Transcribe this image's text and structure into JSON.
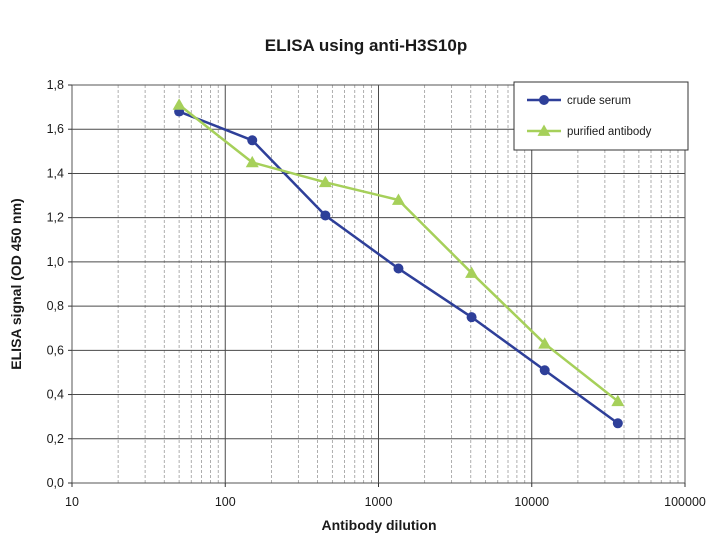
{
  "chart_data": {
    "type": "line",
    "title": "ELISA using anti-H3S10p",
    "xlabel": "Antibody dilution",
    "ylabel": "ELISA signal (OD 450 nm)",
    "x_scale": "log",
    "xlim": [
      10,
      100000
    ],
    "ylim": [
      0,
      1.8
    ],
    "x_ticks": [
      10,
      100,
      1000,
      10000,
      100000
    ],
    "x_tick_labels": [
      "10",
      "100",
      "1000",
      "10000",
      "100000"
    ],
    "y_ticks": [
      0,
      0.2,
      0.4,
      0.6,
      0.8,
      1.0,
      1.2,
      1.4,
      1.6,
      1.8
    ],
    "y_tick_labels": [
      "0,0",
      "0,2",
      "0,4",
      "0,6",
      "0,8",
      "1,0",
      "1,2",
      "1,4",
      "1,6",
      "1,8"
    ],
    "grid": true,
    "legend_position": "top-right",
    "series": [
      {
        "name": "crude serum",
        "color": "#2e3f99",
        "marker": "circle",
        "x": [
          50,
          150,
          450,
          1350,
          4050,
          12150,
          36450
        ],
        "y": [
          1.68,
          1.55,
          1.21,
          0.97,
          0.75,
          0.51,
          0.27
        ]
      },
      {
        "name": "purified antibody",
        "color": "#a6d05a",
        "marker": "triangle",
        "x": [
          50,
          150,
          450,
          1350,
          4050,
          12150,
          36450
        ],
        "y": [
          1.71,
          1.45,
          1.36,
          1.28,
          0.95,
          0.63,
          0.37
        ]
      }
    ]
  }
}
